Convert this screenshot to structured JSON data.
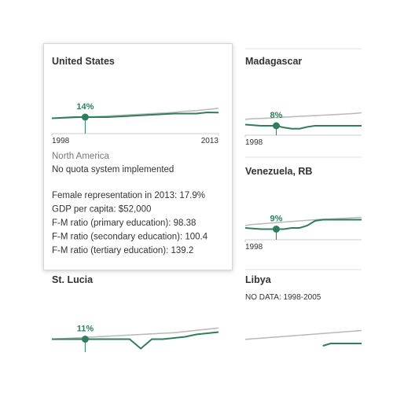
{
  "chart_data": [
    {
      "type": "line",
      "title": "United States",
      "x": [
        1998,
        1999,
        2000,
        2001,
        2002,
        2003,
        2004,
        2005,
        2006,
        2007,
        2008,
        2009,
        2010,
        2011,
        2012,
        2013
      ],
      "xlim": [
        1998,
        2013
      ],
      "xticks": [
        1998,
        2013
      ],
      "ylim": [
        0,
        40
      ],
      "series": [
        {
          "color": "#bbbbbb",
          "values": [
            13,
            13.2,
            13.5,
            14,
            14.5,
            15,
            15.5,
            16,
            16.5,
            17,
            17.5,
            18,
            19,
            19.5,
            20.5,
            21.5
          ]
        },
        {
          "color": "#2e7d5b",
          "values": [
            13,
            13.5,
            14,
            14,
            14,
            14,
            14.5,
            15,
            15.5,
            16,
            16.5,
            17,
            17,
            17,
            18,
            17.9
          ],
          "value_labels": [
            null,
            null,
            null,
            "14%",
            null,
            null,
            null,
            null,
            null,
            null,
            null,
            null,
            null,
            null,
            null,
            null
          ]
        }
      ],
      "region": "North America",
      "quota": "No quota system implemented",
      "details": [
        "Female representation in 2013: 17.9%",
        "GDP per capita: $52,000",
        "F-M ratio (primary education): 98.38",
        "F-M ratio (secondary education): 100.4",
        "F-M ratio (tertiary education): 139.2"
      ]
    },
    {
      "type": "line",
      "title": "Madagascar",
      "x": [
        1998,
        1999,
        2000,
        2001,
        2002,
        2003,
        2004,
        2005,
        2006,
        2007,
        2008,
        2009,
        2010,
        2011,
        2012,
        2013
      ],
      "xlim": [
        1998,
        2013
      ],
      "xticks": [
        1998
      ],
      "ylim": [
        0,
        40
      ],
      "series": [
        {
          "color": "#bbbbbb",
          "values": [
            13.5,
            14,
            14.2,
            14.5,
            15,
            15.3,
            15.6,
            16,
            16.3,
            16.6,
            17,
            17.3,
            17.6,
            18,
            18.4,
            19
          ]
        },
        {
          "color": "#2e7d5b",
          "values": [
            9,
            8.5,
            8,
            8,
            8,
            6.5,
            5.5,
            5.5,
            7,
            8,
            8,
            8,
            8,
            8,
            8,
            8
          ],
          "value_labels": [
            null,
            null,
            null,
            null,
            "8%",
            null,
            null,
            null,
            null,
            null,
            null,
            null,
            null,
            null,
            null,
            null
          ]
        }
      ]
    },
    {
      "type": "line",
      "title": "Venezuela, RB",
      "x": [
        1998,
        1999,
        2000,
        2001,
        2002,
        2003,
        2004,
        2005,
        2006,
        2007,
        2008,
        2009,
        2010,
        2011,
        2012,
        2013
      ],
      "xlim": [
        1998,
        2013
      ],
      "xticks": [
        1998
      ],
      "ylim": [
        0,
        40
      ],
      "series": [
        {
          "color": "#bbbbbb",
          "values": [
            12,
            13,
            13.5,
            14,
            14.5,
            15,
            15.5,
            16,
            16.5,
            17,
            17.3,
            17.6,
            18,
            18.3,
            18.6,
            19
          ]
        },
        {
          "color": "#2e7d5b",
          "values": [
            10,
            9.5,
            9,
            9,
            9,
            9,
            10,
            10,
            12,
            16,
            17,
            17,
            17,
            17,
            17,
            17
          ],
          "value_labels": [
            null,
            null,
            null,
            null,
            "9%",
            null,
            null,
            null,
            null,
            null,
            null,
            null,
            null,
            null,
            null,
            null
          ]
        }
      ]
    },
    {
      "type": "line",
      "title": "St. Lucia",
      "x": [
        1998,
        1999,
        2000,
        2001,
        2002,
        2003,
        2004,
        2005,
        2006,
        2007,
        2008,
        2009,
        2010,
        2011,
        2012,
        2013
      ],
      "xlim": [
        1998,
        2013
      ],
      "ylim": [
        0,
        40
      ],
      "series": [
        {
          "color": "#bbbbbb",
          "values": [
            11,
            11.5,
            12,
            12.5,
            13,
            13.5,
            14,
            14.5,
            15,
            15.5,
            16,
            16.5,
            17.5,
            18.5,
            19.5,
            20.5
          ]
        },
        {
          "color": "#2e7d5b",
          "values": [
            11,
            11,
            11,
            11,
            11,
            11,
            11,
            11,
            3,
            11,
            11,
            12,
            13,
            15,
            16,
            17
          ],
          "value_labels": [
            null,
            null,
            null,
            "11%",
            null,
            null,
            null,
            null,
            null,
            null,
            null,
            null,
            null,
            null,
            null,
            null
          ]
        }
      ]
    },
    {
      "type": "line",
      "title": "Libya",
      "note": "NO DATA: 1998-2005",
      "x": [
        1998,
        1999,
        2000,
        2001,
        2002,
        2003,
        2004,
        2005,
        2006,
        2007,
        2008,
        2009,
        2010,
        2011,
        2012,
        2013
      ],
      "xlim": [
        1998,
        2013
      ],
      "ylim": [
        0,
        40
      ],
      "series": [
        {
          "color": "#bbbbbb",
          "values": [
            13.5,
            14,
            14.5,
            15,
            15.5,
            16,
            16.5,
            17,
            17.5,
            18,
            18.5,
            19,
            19.5,
            20,
            20.5,
            21
          ]
        },
        {
          "color": "#2e7d5b",
          "values": [
            null,
            null,
            null,
            null,
            null,
            null,
            null,
            null,
            null,
            null,
            8,
            10,
            10,
            10,
            10,
            10
          ]
        }
      ]
    }
  ]
}
